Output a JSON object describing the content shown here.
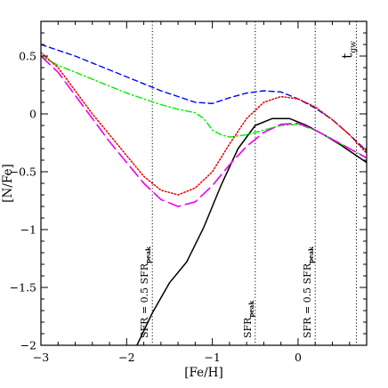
{
  "chart_data": {
    "type": "line",
    "xlabel": "[Fe/H]",
    "ylabel": "[N/Fe]",
    "xlim": [
      -3,
      0.8
    ],
    "ylim": [
      -2,
      0.8
    ],
    "x_ticks": [
      "−3",
      "−2",
      "−1",
      "0"
    ],
    "x_tick_values": [
      -3,
      -2,
      -1,
      0
    ],
    "y_ticks": [
      "0.5",
      "0",
      "−0.5",
      "−1",
      "−1.5",
      "−2"
    ],
    "y_tick_values": [
      0.5,
      0,
      -0.5,
      -1,
      -1.5,
      -2
    ],
    "vertical_markers": [
      {
        "x": -1.7,
        "label_main": "SFR = 0.5 SFR",
        "label_sub": "peak"
      },
      {
        "x": -0.5,
        "label_main": "SFR",
        "label_sub": "peak"
      },
      {
        "x": 0.2,
        "label_main": "SFR = 0.5 SFR",
        "label_sub": "peak"
      },
      {
        "x": 0.68,
        "label_main": "t",
        "label_sub": "gw"
      }
    ],
    "series": [
      {
        "style": "solid",
        "color": "#000000",
        "points": [
          [
            -1.88,
            -2.0
          ],
          [
            -1.7,
            -1.72
          ],
          [
            -1.5,
            -1.46
          ],
          [
            -1.3,
            -1.28
          ],
          [
            -1.1,
            -0.98
          ],
          [
            -0.9,
            -0.62
          ],
          [
            -0.7,
            -0.3
          ],
          [
            -0.5,
            -0.1
          ],
          [
            -0.3,
            -0.04
          ],
          [
            -0.1,
            -0.04
          ],
          [
            0.1,
            -0.1
          ],
          [
            0.3,
            -0.18
          ],
          [
            0.5,
            -0.27
          ],
          [
            0.7,
            -0.37
          ],
          [
            0.8,
            -0.42
          ]
        ]
      },
      {
        "style": "short-dash",
        "color": "#0000ff",
        "points": [
          [
            -3.0,
            0.6
          ],
          [
            -2.8,
            0.55
          ],
          [
            -2.6,
            0.5
          ],
          [
            -2.4,
            0.44
          ],
          [
            -2.2,
            0.38
          ],
          [
            -2.0,
            0.32
          ],
          [
            -1.8,
            0.26
          ],
          [
            -1.6,
            0.2
          ],
          [
            -1.4,
            0.15
          ],
          [
            -1.2,
            0.1
          ],
          [
            -1.0,
            0.09
          ],
          [
            -0.8,
            0.14
          ],
          [
            -0.6,
            0.18
          ],
          [
            -0.4,
            0.2
          ],
          [
            -0.2,
            0.19
          ],
          [
            0.0,
            0.13
          ],
          [
            0.2,
            0.05
          ],
          [
            0.4,
            -0.05
          ],
          [
            0.6,
            -0.18
          ],
          [
            0.8,
            -0.32
          ]
        ]
      },
      {
        "style": "dot-dash",
        "color": "#00ee00",
        "points": [
          [
            -3.0,
            0.5
          ],
          [
            -2.8,
            0.42
          ],
          [
            -2.6,
            0.36
          ],
          [
            -2.4,
            0.3
          ],
          [
            -2.2,
            0.24
          ],
          [
            -2.0,
            0.18
          ],
          [
            -1.8,
            0.13
          ],
          [
            -1.6,
            0.08
          ],
          [
            -1.4,
            0.04
          ],
          [
            -1.2,
            0.01
          ],
          [
            -1.1,
            -0.04
          ],
          [
            -1.0,
            -0.14
          ],
          [
            -0.9,
            -0.18
          ],
          [
            -0.8,
            -0.2
          ],
          [
            -0.6,
            -0.18
          ],
          [
            -0.4,
            -0.14
          ],
          [
            -0.2,
            -0.1
          ],
          [
            0.0,
            -0.09
          ],
          [
            0.2,
            -0.14
          ],
          [
            0.4,
            -0.22
          ],
          [
            0.6,
            -0.3
          ],
          [
            0.8,
            -0.38
          ]
        ]
      },
      {
        "style": "dotted",
        "color": "#ee0000",
        "points": [
          [
            -3.0,
            0.53
          ],
          [
            -2.8,
            0.4
          ],
          [
            -2.6,
            0.2
          ],
          [
            -2.4,
            0.0
          ],
          [
            -2.2,
            -0.18
          ],
          [
            -2.0,
            -0.36
          ],
          [
            -1.8,
            -0.54
          ],
          [
            -1.6,
            -0.66
          ],
          [
            -1.4,
            -0.7
          ],
          [
            -1.2,
            -0.64
          ],
          [
            -1.0,
            -0.5
          ],
          [
            -0.8,
            -0.26
          ],
          [
            -0.6,
            -0.04
          ],
          [
            -0.4,
            0.1
          ],
          [
            -0.2,
            0.15
          ],
          [
            0.0,
            0.13
          ],
          [
            0.2,
            0.06
          ],
          [
            0.4,
            -0.05
          ],
          [
            0.6,
            -0.18
          ],
          [
            0.8,
            -0.34
          ]
        ]
      },
      {
        "style": "long-dash",
        "color": "#ee00ee",
        "points": [
          [
            -3.0,
            0.5
          ],
          [
            -2.8,
            0.36
          ],
          [
            -2.6,
            0.16
          ],
          [
            -2.4,
            -0.04
          ],
          [
            -2.2,
            -0.24
          ],
          [
            -2.0,
            -0.42
          ],
          [
            -1.8,
            -0.6
          ],
          [
            -1.6,
            -0.74
          ],
          [
            -1.4,
            -0.8
          ],
          [
            -1.2,
            -0.76
          ],
          [
            -1.0,
            -0.62
          ],
          [
            -0.8,
            -0.44
          ],
          [
            -0.6,
            -0.28
          ],
          [
            -0.4,
            -0.16
          ],
          [
            -0.2,
            -0.09
          ],
          [
            0.0,
            -0.08
          ],
          [
            0.2,
            -0.14
          ],
          [
            0.4,
            -0.22
          ],
          [
            0.6,
            -0.3
          ],
          [
            0.8,
            -0.38
          ]
        ]
      }
    ]
  }
}
